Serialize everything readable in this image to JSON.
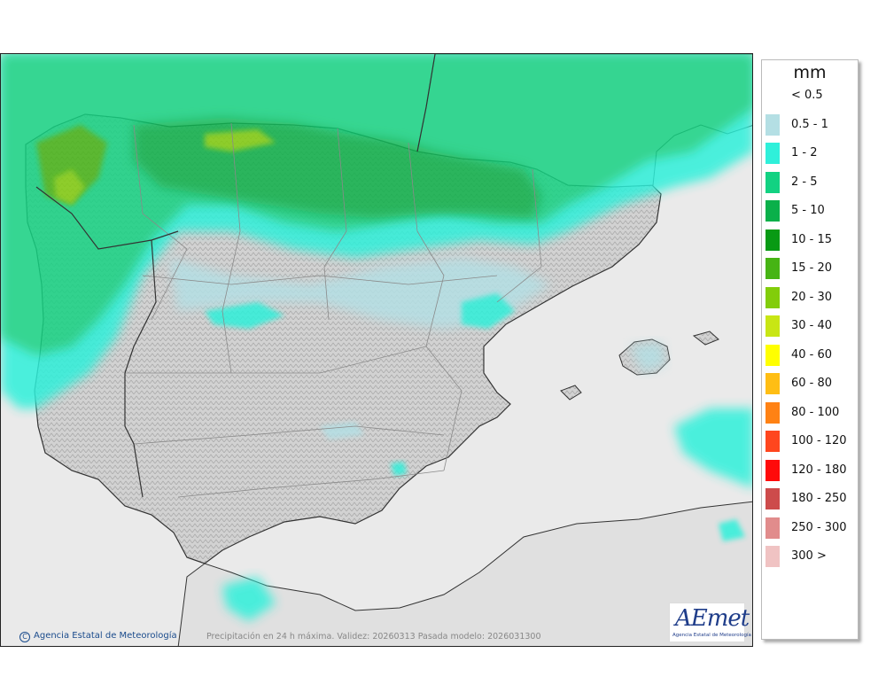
{
  "legend": {
    "unit": "mm",
    "items": [
      {
        "label": "< 0.5",
        "color": "#ffffff"
      },
      {
        "label": "0.5 - 1",
        "color": "#b4dfe4"
      },
      {
        "label": "1 - 2",
        "color": "#2ff0da"
      },
      {
        "label": "2 - 5",
        "color": "#12d282"
      },
      {
        "label": "5 - 10",
        "color": "#0ab04a"
      },
      {
        "label": "10 - 15",
        "color": "#089a14"
      },
      {
        "label": "15 - 20",
        "color": "#46b414"
      },
      {
        "label": "20 - 30",
        "color": "#82cd0a"
      },
      {
        "label": "30 - 40",
        "color": "#c8e614"
      },
      {
        "label": "40 - 60",
        "color": "#ffff00"
      },
      {
        "label": "60 - 80",
        "color": "#ffbe14"
      },
      {
        "label": "80 - 100",
        "color": "#ff8214"
      },
      {
        "label": "100 - 120",
        "color": "#ff461e"
      },
      {
        "label": "120 - 180",
        "color": "#ff0a0a"
      },
      {
        "label": "180 - 250",
        "color": "#cd4b4b"
      },
      {
        "label": "250 - 300",
        "color": "#e18c8c"
      },
      {
        "label": "300 >",
        "color": "#f0c3c3"
      }
    ]
  },
  "footer": {
    "credit": "Agencia Estatal de Meteorología",
    "caption": "Precipitación en 24 h máxima. Validez: 20260313 Pasada modelo: 2026031300"
  },
  "logo": {
    "text": "AEmet",
    "subtitle": "Agencia Estatal de Meteorología"
  },
  "colors": {
    "sea": "#eaeaea",
    "land": "#d4d4d4",
    "border": "#333333",
    "region_border": "#8a8a8a"
  }
}
